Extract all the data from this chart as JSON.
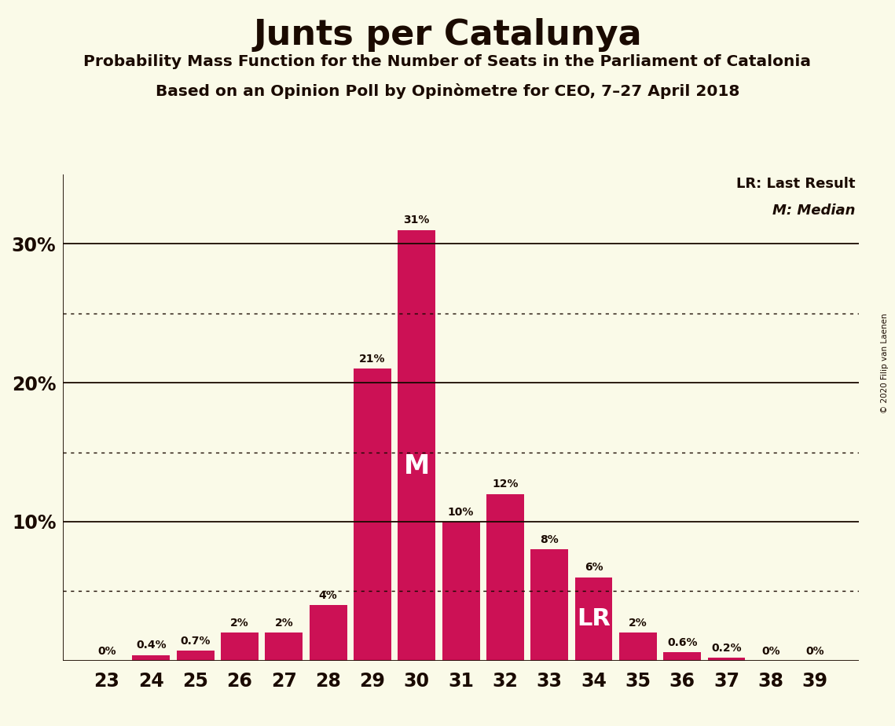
{
  "title": "Junts per Catalunya",
  "subtitle1": "Probability Mass Function for the Number of Seats in the Parliament of Catalonia",
  "subtitle2": "Based on an Opinion Poll by Opinòmetre for CEO, 7–27 April 2018",
  "copyright": "© 2020 Filip van Laenen",
  "seats": [
    23,
    24,
    25,
    26,
    27,
    28,
    29,
    30,
    31,
    32,
    33,
    34,
    35,
    36,
    37,
    38,
    39
  ],
  "probabilities": [
    0.0,
    0.4,
    0.7,
    2.0,
    2.0,
    4.0,
    21.0,
    31.0,
    10.0,
    12.0,
    8.0,
    6.0,
    2.0,
    0.6,
    0.2,
    0.0,
    0.0
  ],
  "bar_color": "#CC1155",
  "background_color": "#FAFAE8",
  "text_color": "#1a0a00",
  "median_seat": 30,
  "last_result_seat": 34,
  "ylim": [
    0,
    35
  ],
  "solid_gridlines": [
    10,
    20,
    30
  ],
  "dotted_gridlines": [
    5,
    15,
    25
  ],
  "legend_lr": "LR: Last Result",
  "legend_m": "M: Median",
  "bar_labels": [
    "0%",
    "0.4%",
    "0.7%",
    "2%",
    "2%",
    "4%",
    "21%",
    "31%",
    "10%",
    "12%",
    "8%",
    "6%",
    "2%",
    "0.6%",
    "0.2%",
    "0%",
    "0%"
  ]
}
